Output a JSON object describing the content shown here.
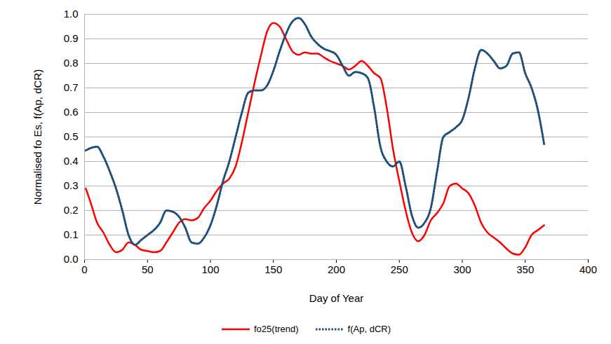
{
  "chart_data": {
    "type": "line",
    "x_label": "Day of Year",
    "y_label": "Normalised fo Es, f(Ap, dCR)",
    "xlim": [
      0,
      400
    ],
    "xticks": [
      0,
      50,
      100,
      150,
      200,
      250,
      300,
      350,
      400
    ],
    "ylim": [
      0,
      1
    ],
    "yticks": [
      {
        "value": 0,
        "label": "0.0"
      },
      0.1,
      0.2,
      0.3,
      0.4,
      0.5,
      0.6,
      0.7,
      0.8,
      0.9,
      {
        "value": 1,
        "label": "1.0"
      }
    ],
    "grid": "y",
    "legend": "bottom",
    "x": [
      1,
      5,
      10,
      15,
      20,
      25,
      30,
      35,
      40,
      45,
      50,
      55,
      60,
      65,
      70,
      75,
      80,
      85,
      90,
      95,
      100,
      105,
      110,
      115,
      120,
      125,
      130,
      135,
      140,
      145,
      150,
      155,
      160,
      165,
      170,
      175,
      180,
      185,
      190,
      195,
      200,
      205,
      210,
      215,
      220,
      225,
      230,
      235,
      240,
      245,
      250,
      255,
      260,
      265,
      270,
      275,
      280,
      285,
      290,
      295,
      300,
      305,
      310,
      315,
      320,
      325,
      330,
      335,
      340,
      345,
      350,
      355,
      360,
      365
    ],
    "series": [
      {
        "name": "fo25(trend)",
        "color": "#ff0000",
        "line_style": "solid",
        "values": [
          0.29,
          0.23,
          0.15,
          0.11,
          0.06,
          0.03,
          0.04,
          0.07,
          0.06,
          0.04,
          0.035,
          0.03,
          0.035,
          0.07,
          0.11,
          0.15,
          0.165,
          0.16,
          0.17,
          0.21,
          0.24,
          0.28,
          0.31,
          0.33,
          0.38,
          0.48,
          0.6,
          0.72,
          0.83,
          0.93,
          0.965,
          0.95,
          0.9,
          0.85,
          0.835,
          0.845,
          0.84,
          0.84,
          0.825,
          0.81,
          0.8,
          0.79,
          0.775,
          0.79,
          0.81,
          0.79,
          0.76,
          0.74,
          0.62,
          0.45,
          0.32,
          0.2,
          0.11,
          0.075,
          0.1,
          0.16,
          0.19,
          0.23,
          0.3,
          0.31,
          0.29,
          0.27,
          0.22,
          0.15,
          0.11,
          0.09,
          0.07,
          0.045,
          0.025,
          0.02,
          0.05,
          0.1,
          0.12,
          0.14
        ]
      },
      {
        "name": "f(Ap, dCR)",
        "color": "#1f4e79",
        "line_style": "dotted",
        "values": [
          0.445,
          0.455,
          0.46,
          0.42,
          0.36,
          0.29,
          0.2,
          0.1,
          0.06,
          0.08,
          0.1,
          0.12,
          0.15,
          0.2,
          0.195,
          0.175,
          0.13,
          0.07,
          0.065,
          0.09,
          0.14,
          0.22,
          0.32,
          0.4,
          0.5,
          0.6,
          0.68,
          0.69,
          0.69,
          0.71,
          0.77,
          0.85,
          0.92,
          0.97,
          0.985,
          0.96,
          0.91,
          0.88,
          0.86,
          0.85,
          0.835,
          0.79,
          0.75,
          0.765,
          0.76,
          0.74,
          0.62,
          0.46,
          0.4,
          0.38,
          0.4,
          0.3,
          0.18,
          0.13,
          0.15,
          0.21,
          0.36,
          0.5,
          0.52,
          0.54,
          0.57,
          0.66,
          0.78,
          0.855,
          0.84,
          0.81,
          0.78,
          0.79,
          0.84,
          0.845,
          0.76,
          0.7,
          0.61,
          0.47
        ]
      }
    ]
  }
}
